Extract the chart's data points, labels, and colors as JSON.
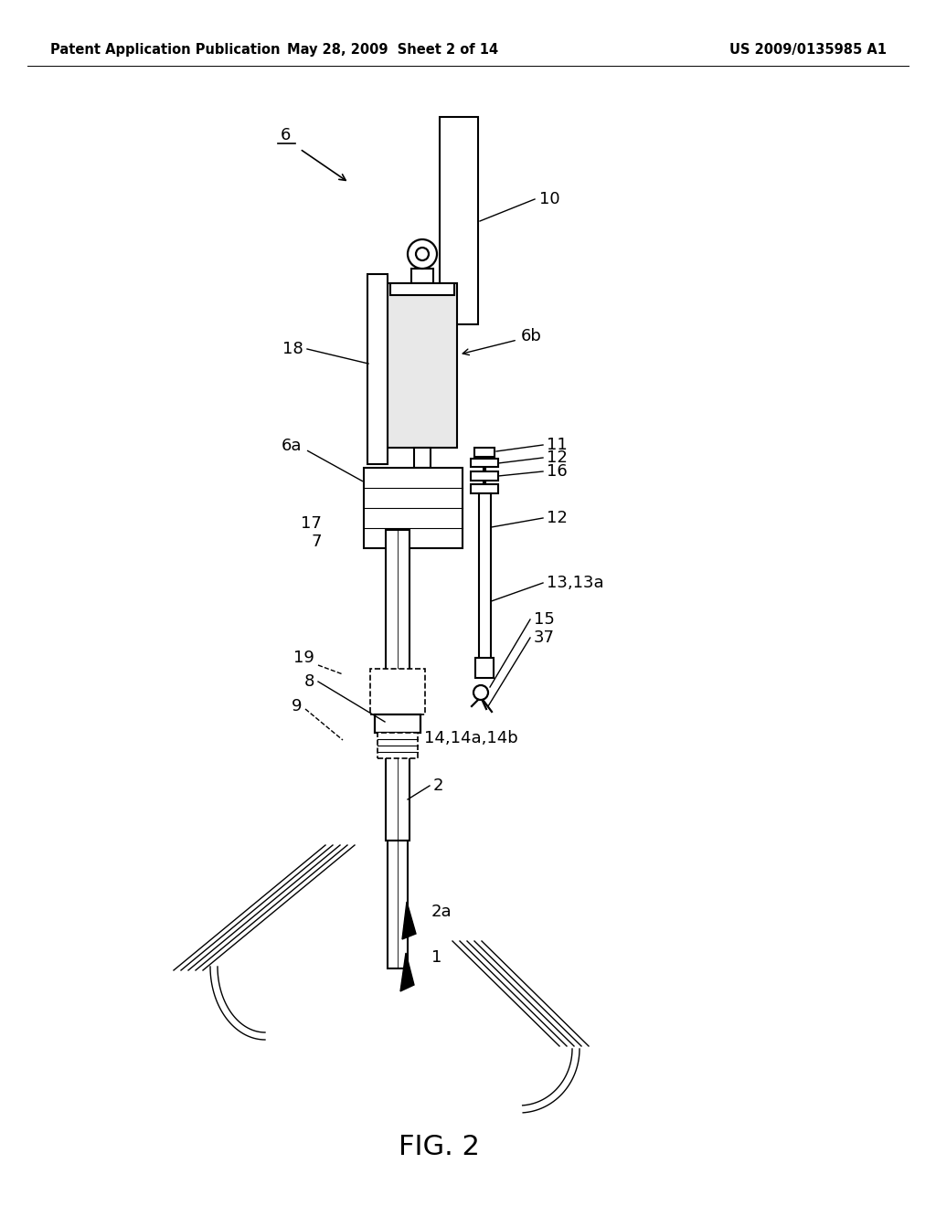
{
  "bg_color": "#ffffff",
  "header_left": "Patent Application Publication",
  "header_mid": "May 28, 2009  Sheet 2 of 14",
  "header_right": "US 2009/0135985 A1",
  "figure_label": "FIG. 2",
  "header_fontsize": 10.5,
  "label_fontsize": 13,
  "fig_label_fontsize": 22
}
